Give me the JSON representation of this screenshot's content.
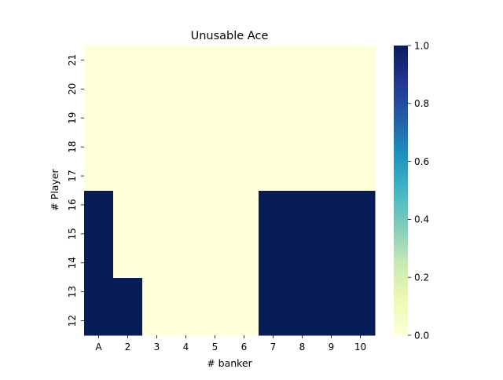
{
  "chart_data": {
    "type": "heatmap",
    "title": "Unusable Ace",
    "xlabel": "# banker",
    "ylabel": "# Player",
    "x_categories": [
      "A",
      "2",
      "3",
      "4",
      "5",
      "6",
      "7",
      "8",
      "9",
      "10"
    ],
    "y_categories": [
      "12",
      "13",
      "14",
      "15",
      "16",
      "17",
      "18",
      "19",
      "20",
      "21"
    ],
    "values": [
      [
        1,
        1,
        0,
        0,
        0,
        0,
        1,
        1,
        1,
        1
      ],
      [
        1,
        1,
        0,
        0,
        0,
        0,
        1,
        1,
        1,
        1
      ],
      [
        1,
        0,
        0,
        0,
        0,
        0,
        1,
        1,
        1,
        1
      ],
      [
        1,
        0,
        0,
        0,
        0,
        0,
        1,
        1,
        1,
        1
      ],
      [
        1,
        0,
        0,
        0,
        0,
        0,
        1,
        1,
        1,
        1
      ],
      [
        0,
        0,
        0,
        0,
        0,
        0,
        0,
        0,
        0,
        0
      ],
      [
        0,
        0,
        0,
        0,
        0,
        0,
        0,
        0,
        0,
        0
      ],
      [
        0,
        0,
        0,
        0,
        0,
        0,
        0,
        0,
        0,
        0
      ],
      [
        0,
        0,
        0,
        0,
        0,
        0,
        0,
        0,
        0,
        0
      ],
      [
        0,
        0,
        0,
        0,
        0,
        0,
        0,
        0,
        0,
        0
      ]
    ],
    "colormap": "YlGnBu",
    "colorbar": {
      "vmin": 0.0,
      "vmax": 1.0,
      "ticks": [
        "0.0",
        "0.2",
        "0.4",
        "0.6",
        "0.8",
        "1.0"
      ],
      "low_color": "#ffffd9",
      "high_color": "#081d58"
    }
  }
}
